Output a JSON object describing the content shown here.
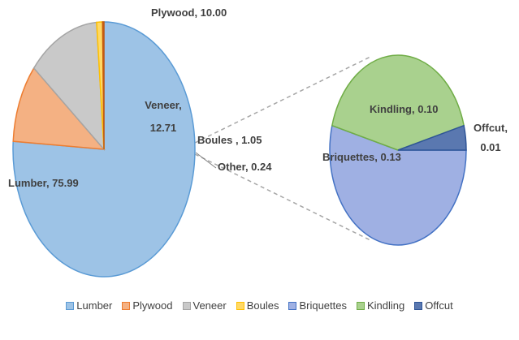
{
  "chart_data": {
    "type": "pie-of-pie",
    "categories": [
      "Lumber",
      "Plywood",
      "Veneer",
      "Boules",
      "Other"
    ],
    "values": [
      75.99,
      10.0,
      12.71,
      1.05,
      0.24
    ],
    "value_labels": [
      "Lumber, 75.99",
      "Plywood, 10.00",
      "Veneer, 12.71",
      "Boules , 1.05",
      "Other, 0.24"
    ],
    "colors": [
      "#9dc3e6",
      "#f4b183",
      "#c9c9c9",
      "#ffd966",
      "#c55a11"
    ],
    "secondary": {
      "categories": [
        "Briquettes",
        "Kindling",
        "Offcut"
      ],
      "values": [
        0.13,
        0.1,
        0.01
      ],
      "value_labels": [
        "Briquettes, 0.13",
        "Kindling, 0.10",
        "Offcut, 0.01"
      ],
      "colors": [
        "#9fb0e3",
        "#a9d18e",
        "#5a78b0"
      ]
    }
  }
}
